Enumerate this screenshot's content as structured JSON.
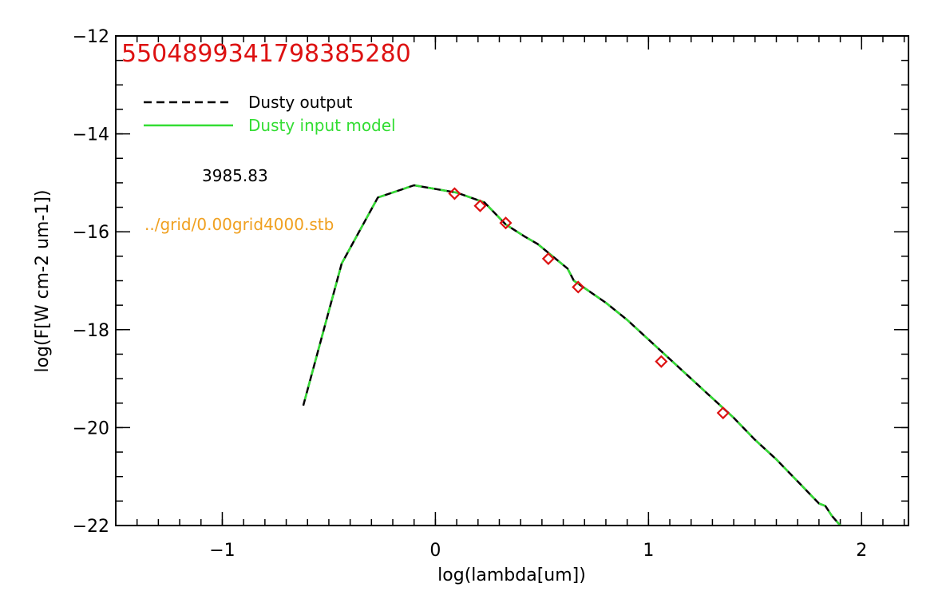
{
  "colors": {
    "output_line": "#000000",
    "input_line": "#33dd33",
    "observed_points": "#dd1111",
    "title": "#dd1111",
    "filename": "#f0a020",
    "axes": "#000000"
  },
  "chart_data": {
    "type": "line",
    "title": "5504899341798385280",
    "xlabel": "log(lambda[um])",
    "ylabel": "log(F[W cm-2 um-1])",
    "xlim": [
      -1.5,
      2.22
    ],
    "ylim": [
      -22,
      -12
    ],
    "x_ticks": [
      {
        "value": -1,
        "label": "−1"
      },
      {
        "value": 0,
        "label": "0"
      },
      {
        "value": 1,
        "label": "1"
      },
      {
        "value": 2,
        "label": "2"
      }
    ],
    "y_ticks": [
      {
        "value": -12,
        "label": "−12"
      },
      {
        "value": -14,
        "label": "−14"
      },
      {
        "value": -16,
        "label": "−16"
      },
      {
        "value": -18,
        "label": "−18"
      },
      {
        "value": -20,
        "label": "−20"
      },
      {
        "value": -22,
        "label": "−22"
      }
    ],
    "x_minor_step": 0.1,
    "y_minor_step": 0.5,
    "grid": false,
    "legend_position": "top-left",
    "series": [
      {
        "name": "Dusty output",
        "style": "dashed",
        "x": [
          -0.62,
          -0.44,
          -0.27,
          -0.1,
          0.1,
          0.23,
          0.33,
          0.42,
          0.48,
          0.55,
          0.62,
          0.65,
          0.7,
          0.8,
          0.9,
          1.0,
          1.1,
          1.2,
          1.3,
          1.4,
          1.5,
          1.6,
          1.7,
          1.8,
          1.83,
          1.86,
          1.9
        ],
        "y": [
          -19.55,
          -16.65,
          -15.3,
          -15.05,
          -15.2,
          -15.4,
          -15.85,
          -16.1,
          -16.25,
          -16.5,
          -16.75,
          -17.0,
          -17.15,
          -17.45,
          -17.8,
          -18.2,
          -18.6,
          -19.0,
          -19.4,
          -19.8,
          -20.25,
          -20.65,
          -21.1,
          -21.55,
          -21.6,
          -21.8,
          -22.0
        ]
      },
      {
        "name": "Dusty input model",
        "style": "solid",
        "x": [
          -0.62,
          -0.44,
          -0.27,
          -0.1,
          0.1,
          0.23,
          0.33,
          0.42,
          0.48,
          0.55,
          0.62,
          0.65,
          0.7,
          0.8,
          0.9,
          1.0,
          1.1,
          1.2,
          1.3,
          1.4,
          1.5,
          1.6,
          1.7,
          1.8,
          1.83,
          1.86,
          1.9
        ],
        "y": [
          -19.55,
          -16.65,
          -15.3,
          -15.05,
          -15.2,
          -15.4,
          -15.85,
          -16.1,
          -16.25,
          -16.5,
          -16.75,
          -17.0,
          -17.15,
          -17.45,
          -17.8,
          -18.2,
          -18.6,
          -19.0,
          -19.4,
          -19.8,
          -20.25,
          -20.65,
          -21.1,
          -21.55,
          -21.6,
          -21.8,
          -22.0
        ]
      },
      {
        "style": "diamond-markers",
        "x": [
          0.09,
          0.21,
          0.33,
          0.53,
          0.67,
          1.06,
          1.35
        ],
        "y": [
          -15.22,
          -15.47,
          -15.82,
          -16.55,
          -17.13,
          -18.65,
          -19.7
        ]
      }
    ],
    "annotations": [
      "3985.83",
      "../grid/0.00grid4000.stb"
    ]
  }
}
